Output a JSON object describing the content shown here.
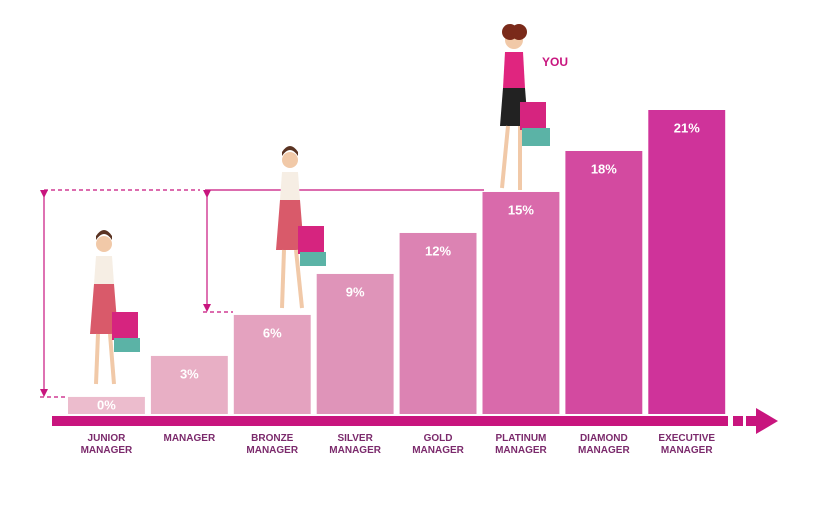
{
  "chart_data": {
    "type": "bar",
    "categories": [
      "JUNIOR MANAGER",
      "MANAGER",
      "BRONZE MANAGER",
      "SILVER MANAGER",
      "GOLD MANAGER",
      "PLATINUM MANAGER",
      "DIAMOND MANAGER",
      "EXECUTIVE MANAGER"
    ],
    "values": [
      0,
      3,
      6,
      9,
      12,
      15,
      18,
      21
    ],
    "value_labels": [
      "0%",
      "3%",
      "6%",
      "9%",
      "12%",
      "15%",
      "18%",
      "21%"
    ],
    "colors": [
      "#ecbccd",
      "#e8afc5",
      "#e4a2bf",
      "#df94b9",
      "#dc83b3",
      "#d96aab",
      "#d34aa0",
      "#cf339a"
    ],
    "ylim": [
      -1.25,
      21
    ],
    "annotation": "YOU"
  }
}
